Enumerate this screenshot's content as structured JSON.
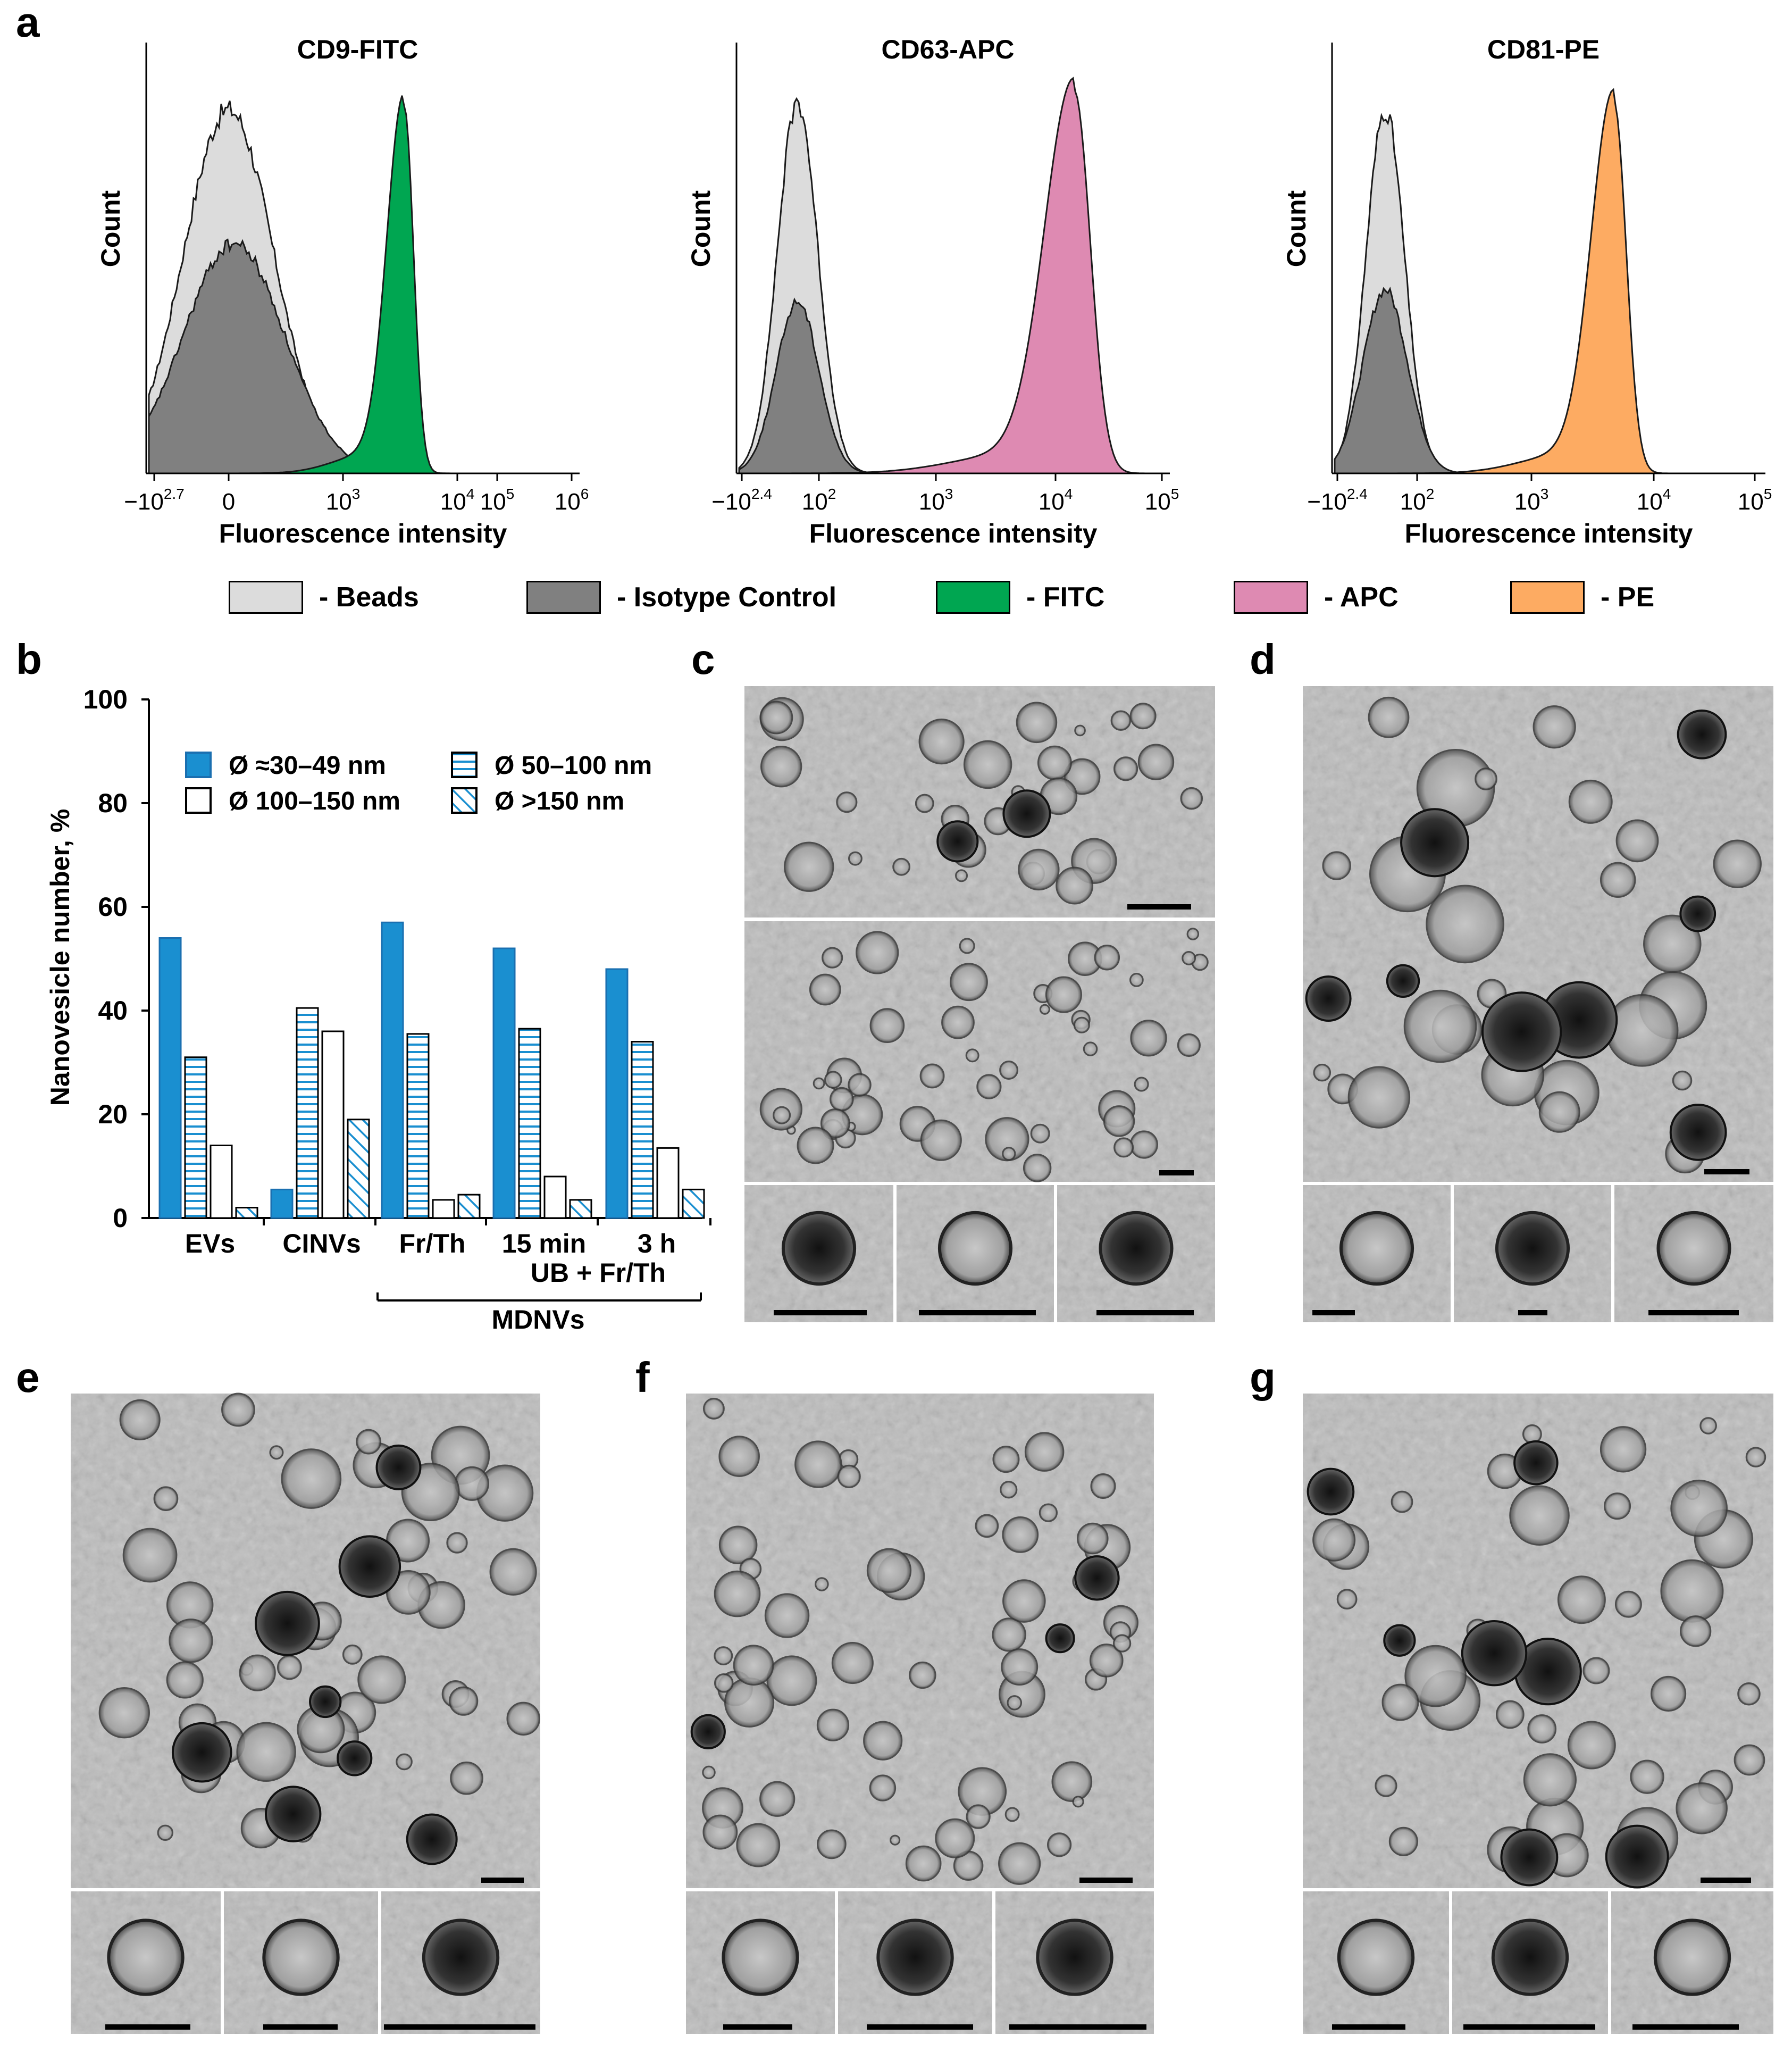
{
  "panel_labels": {
    "a": "a",
    "b": "b",
    "c": "c",
    "d": "d",
    "e": "e",
    "f": "f",
    "g": "g"
  },
  "legend_a": [
    {
      "label": "- Beads",
      "color": "#dcdcdc"
    },
    {
      "label": "- Isotype Control",
      "color": "#808080"
    },
    {
      "label": "- FITC",
      "color": "#00a651"
    },
    {
      "label": "- APC",
      "color": "#de8ab2"
    },
    {
      "label": "- PE",
      "color": "#fdab62"
    }
  ],
  "colors": {
    "beads": "#dcdcdc",
    "isotype": "#808080",
    "bar_solid": "#1a8fd0",
    "bar_stroke": "#1a6fb0",
    "tem_bg": "#bdbdbd"
  },
  "chart_data": [
    {
      "type": "area",
      "panel": "a",
      "title": "CD9-FITC",
      "xlabel": "Fluorescence intensity",
      "ylabel": "Count",
      "x_scale": "biexponential (log decades)",
      "xticks": [
        "−10^2.7",
        "0",
        "10^3",
        "10^4",
        "10^5",
        "10^6"
      ],
      "series": [
        {
          "name": "Beads",
          "color": "#dcdcdc",
          "peak_log10": 2.0,
          "peak_rel": 1.0
        },
        {
          "name": "Isotype Control",
          "color": "#808080",
          "peak_log10": 2.0,
          "peak_rel": 0.62
        },
        {
          "name": "FITC",
          "color": "#00a651",
          "peak_log10": 3.8,
          "peak_rel": 0.98
        }
      ]
    },
    {
      "type": "area",
      "panel": "a",
      "title": "CD63-APC",
      "xlabel": "Fluorescence intensity",
      "ylabel": "Count",
      "x_scale": "biexponential (log decades)",
      "xticks": [
        "−10^2.4",
        "10^2",
        "10^3",
        "10^4",
        "10^5"
      ],
      "series": [
        {
          "name": "Beads",
          "color": "#dcdcdc",
          "peak_log10": 1.8,
          "peak_rel": 0.98
        },
        {
          "name": "Isotype Control",
          "color": "#808080",
          "peak_log10": 1.8,
          "peak_rel": 0.45
        },
        {
          "name": "APC",
          "color": "#de8ab2",
          "peak_log10": 4.15,
          "peak_rel": 1.0
        }
      ]
    },
    {
      "type": "area",
      "panel": "a",
      "title": "CD81-PE",
      "xlabel": "Fluorescence intensity",
      "ylabel": "Count",
      "x_scale": "biexponential (log decades)",
      "xticks": [
        "−10^2.4",
        "10^2",
        "10^3",
        "10^4",
        "10^5"
      ],
      "series": [
        {
          "name": "Beads",
          "color": "#dcdcdc",
          "peak_log10": 1.8,
          "peak_rel": 0.96
        },
        {
          "name": "Isotype Control",
          "color": "#808080",
          "peak_log10": 1.8,
          "peak_rel": 0.48
        },
        {
          "name": "PE",
          "color": "#fdab62",
          "peak_log10": 3.7,
          "peak_rel": 0.98
        }
      ]
    },
    {
      "type": "bar",
      "panel": "b",
      "ylabel": "Nanovesicle number, %",
      "ylim": [
        0,
        100
      ],
      "yticks": [
        "0",
        "20",
        "40",
        "60",
        "80",
        "100"
      ],
      "categories": [
        "EVs",
        "CINVs",
        "Fr/Th",
        "15 min",
        "3 h"
      ],
      "group_labels": [
        {
          "text": "UB + Fr/Th"
        },
        {
          "text": "MDNVs"
        }
      ],
      "series": [
        {
          "name": "Ø ≈30–49 nm",
          "pattern": "solid",
          "values": [
            54,
            5.5,
            57,
            52,
            48
          ]
        },
        {
          "name": "Ø 50–100 nm",
          "pattern": "hlines",
          "values": [
            31,
            40.5,
            35.5,
            36.5,
            34
          ]
        },
        {
          "name": "Ø 100–150 nm",
          "pattern": "empty",
          "values": [
            14,
            36,
            3.5,
            8,
            13.5
          ]
        },
        {
          "name": "Ø >150 nm",
          "pattern": "diag",
          "values": [
            2,
            19,
            4.5,
            3.5,
            5.5
          ]
        }
      ]
    }
  ]
}
